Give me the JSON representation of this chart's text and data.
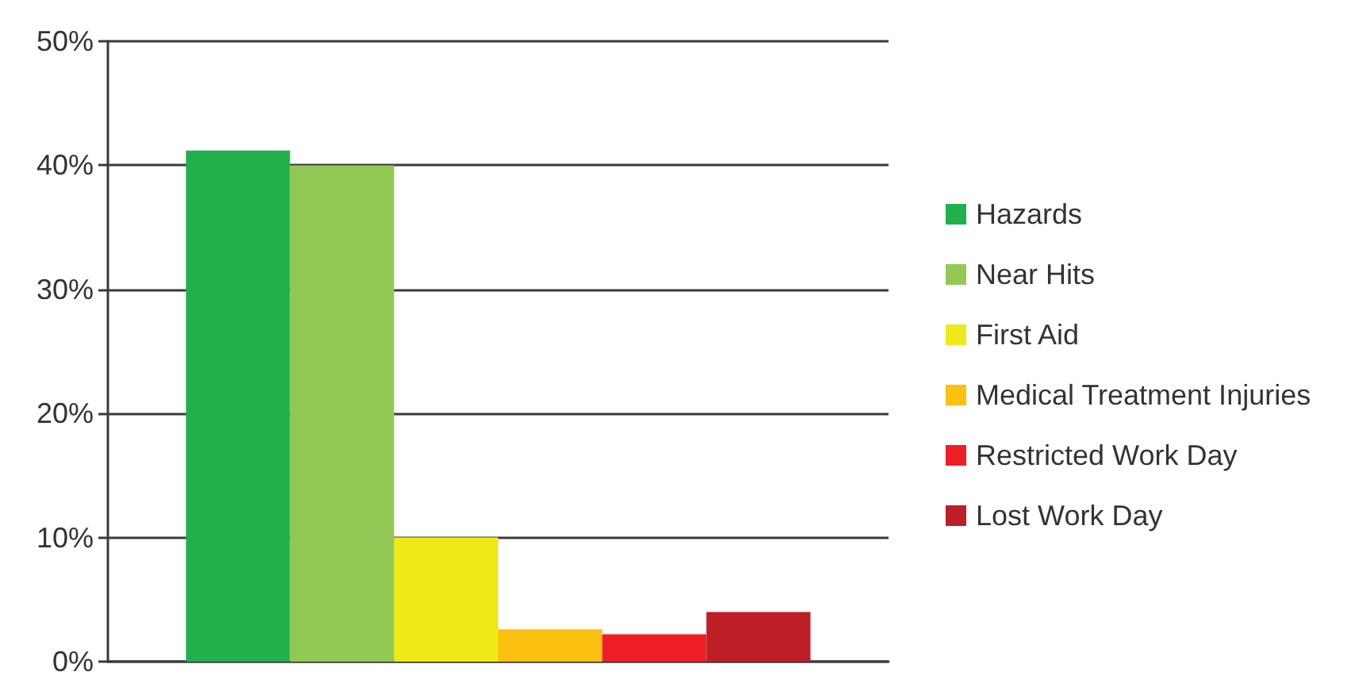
{
  "chart_data": {
    "type": "bar",
    "categories": [
      null
    ],
    "series": [
      {
        "name": "Hazards",
        "color": "#21b04b",
        "values": [
          41.2
        ]
      },
      {
        "name": "Near Hits",
        "color": "#92c954",
        "values": [
          40
        ]
      },
      {
        "name": "First Aid",
        "color": "#f0e918",
        "values": [
          10
        ]
      },
      {
        "name": "Medical Treatment Injuries",
        "color": "#fbc010",
        "values": [
          2.6
        ]
      },
      {
        "name": "Restricted Work Day",
        "color": "#ed1f24",
        "values": [
          2.2
        ]
      },
      {
        "name": "Lost Work Day",
        "color": "#be1e26",
        "values": [
          4
        ]
      }
    ],
    "ylim": [
      0,
      50
    ],
    "yticks": [
      {
        "value": 0,
        "label": "0%"
      },
      {
        "value": 10,
        "label": "10%"
      },
      {
        "value": 20,
        "label": "20%"
      },
      {
        "value": 30,
        "label": "30%"
      },
      {
        "value": 40,
        "label": "40%"
      },
      {
        "value": 50,
        "label": "50%"
      }
    ],
    "grid": "y",
    "legend": "right"
  }
}
